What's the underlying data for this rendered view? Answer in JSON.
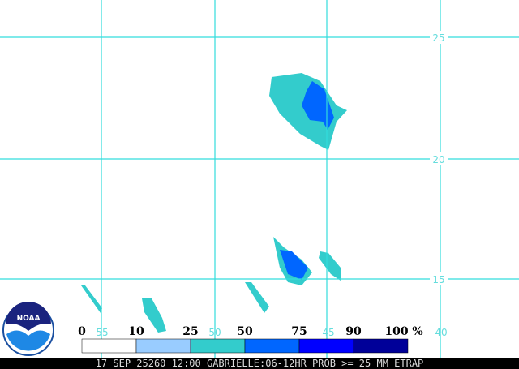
{
  "map": {
    "lat_labels": [
      "25",
      "20",
      "15"
    ],
    "lon_labels": [
      "55",
      "50",
      "45",
      "40"
    ]
  },
  "legend": {
    "stops": [
      {
        "label": "0",
        "color": "#ffffff"
      },
      {
        "label": "10",
        "color": "#99ccff"
      },
      {
        "label": "25",
        "color": "#33cccc"
      },
      {
        "label": "50",
        "color": "#0066ff"
      },
      {
        "label": "75",
        "color": "#0000ff"
      },
      {
        "label": "90",
        "color": "#000099"
      }
    ],
    "end_label": "100",
    "unit": "%"
  },
  "logo": {
    "text": "NOAA"
  },
  "caption": "17 SEP 25260 12:00 GABRIELLE:06-12HR PROB >= 25 MM ETRAP"
}
